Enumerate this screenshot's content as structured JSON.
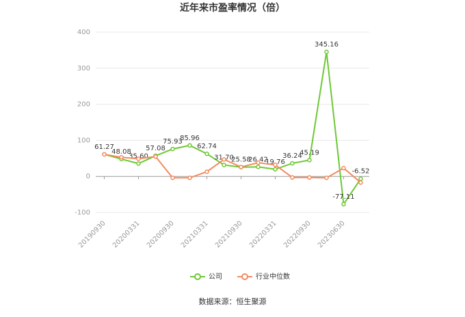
{
  "chart_data": {
    "type": "line",
    "title": "近年来市盈率情况（倍）",
    "categories": [
      "20190930",
      null,
      "20200331",
      null,
      "20200930",
      null,
      "20210331",
      null,
      "20210930",
      null,
      "20220331",
      null,
      "20220930",
      null,
      "20230630",
      null
    ],
    "series": [
      {
        "name": "公司",
        "color": "#6cc832",
        "values": [
          61.27,
          48.08,
          35.6,
          57.08,
          75.93,
          85.96,
          62.74,
          31.7,
          25.58,
          26.42,
          19.76,
          36.24,
          45.19,
          345.16,
          -77.11,
          -6.52
        ],
        "value_labels": [
          "61.27",
          "48.08",
          "35.60",
          "57.08",
          "75.93",
          "85.96",
          "62.74",
          "31.70",
          "25.58",
          "26.42",
          "19.76",
          "36.24",
          "45.19",
          "345.16",
          "-77.11",
          "-6.52"
        ]
      },
      {
        "name": "行业中位数",
        "color": "#f28a5e",
        "values": [
          61,
          53,
          49,
          55,
          -4,
          -4,
          13,
          47,
          26,
          38,
          32,
          -3,
          -3,
          -4,
          23,
          -17
        ]
      }
    ],
    "ylim": [
      -100,
      400
    ],
    "yticks": [
      -100,
      0,
      100,
      200,
      300,
      400
    ],
    "grid": true,
    "source": "数据来源：恒生聚源"
  }
}
